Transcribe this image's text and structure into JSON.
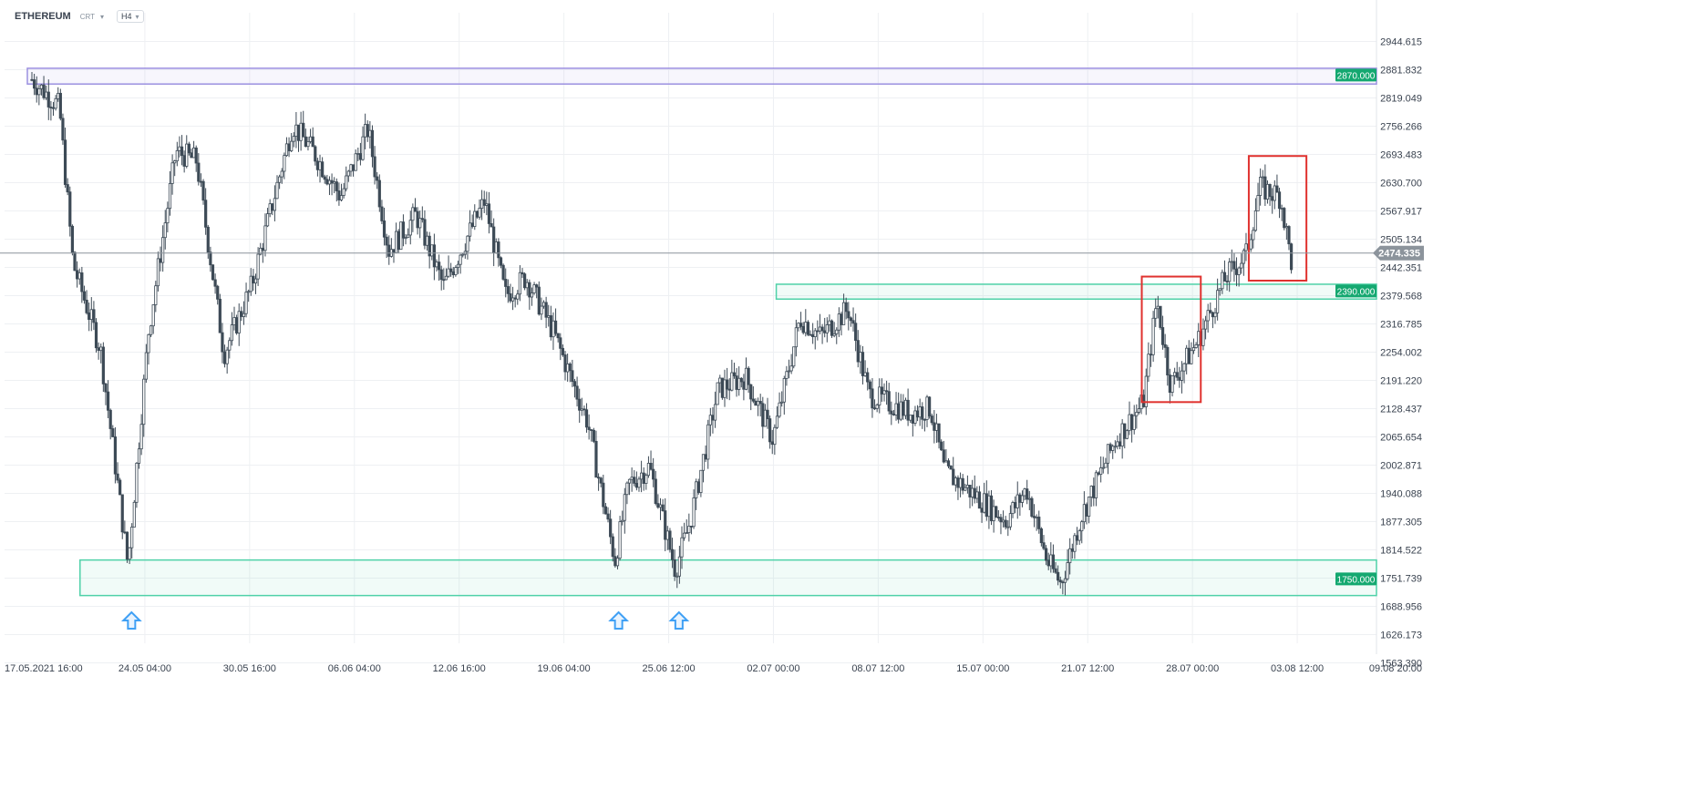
{
  "header": {
    "symbol": "ETHEREUM",
    "chart_type": "CRT",
    "timeframe": "H4"
  },
  "colors": {
    "candle": "#3d4a56",
    "grid": "#eef0f3",
    "resistance_zone": "#9b90e0",
    "support_zone": "#4fd1a8",
    "marker_box": "#e0322f",
    "arrow": "#3fa0f5",
    "price_tag": "#8c949c",
    "level_tag": "#14a870"
  },
  "chart_data": {
    "type": "candlestick",
    "title": "",
    "xlabel": "",
    "ylabel": "",
    "ylim": [
      1563.39,
      3010
    ],
    "y_ticks": [
      "2944.615",
      "2881.832",
      "2819.049",
      "2756.266",
      "2693.483",
      "2630.700",
      "2567.917",
      "2505.134",
      "2442.351",
      "2379.568",
      "2316.785",
      "2254.002",
      "2191.220",
      "2128.437",
      "2065.654",
      "2002.871",
      "1940.088",
      "1877.305",
      "1814.522",
      "1751.739",
      "1688.956",
      "1626.173",
      "1563.390"
    ],
    "x_ticks": [
      "17.05.2021  16:00",
      "24.05  04:00",
      "30.05  16:00",
      "06.06  04:00",
      "12.06  16:00",
      "19.06  04:00",
      "25.06  12:00",
      "02.07  00:00",
      "08.07  12:00",
      "15.07  00:00",
      "21.07  12:00",
      "28.07  00:00",
      "03.08  12:00",
      "09.08  20:00"
    ],
    "current_price": "2474.335",
    "level_labels": [
      "2870.000",
      "2390.000",
      "1750.000"
    ],
    "zones": [
      {
        "name": "resistance",
        "x_start": 0,
        "x_end": 1,
        "y_low": 2850,
        "y_high": 2885,
        "label": "2870.000"
      },
      {
        "name": "mid-resistance",
        "x_start": 0.5625,
        "x_end": 1,
        "y_low": 2372,
        "y_high": 2405,
        "label": "2390.000"
      },
      {
        "name": "support",
        "x_start": 0.055,
        "x_end": 1,
        "y_low": 1713,
        "y_high": 1792,
        "label": "1750.000"
      }
    ],
    "boxes": [
      {
        "t_start": 0.809,
        "t_end": 0.852,
        "y_low": 2143,
        "y_high": 2422
      },
      {
        "t_start": 0.887,
        "t_end": 0.929,
        "y_low": 2413,
        "y_high": 2690
      }
    ],
    "arrows": [
      0.07,
      0.425,
      0.469
    ],
    "trend_anchors": [
      {
        "t": 0.0,
        "p": 2860
      },
      {
        "t": 0.02,
        "p": 2800
      },
      {
        "t": 0.03,
        "p": 2450
      },
      {
        "t": 0.05,
        "p": 2260
      },
      {
        "t": 0.07,
        "p": 1780
      },
      {
        "t": 0.085,
        "p": 2300
      },
      {
        "t": 0.105,
        "p": 2700
      },
      {
        "t": 0.12,
        "p": 2680
      },
      {
        "t": 0.14,
        "p": 2250
      },
      {
        "t": 0.16,
        "p": 2400
      },
      {
        "t": 0.19,
        "p": 2760
      },
      {
        "t": 0.205,
        "p": 2700
      },
      {
        "t": 0.225,
        "p": 2600
      },
      {
        "t": 0.245,
        "p": 2750
      },
      {
        "t": 0.26,
        "p": 2480
      },
      {
        "t": 0.28,
        "p": 2560
      },
      {
        "t": 0.3,
        "p": 2400
      },
      {
        "t": 0.33,
        "p": 2590
      },
      {
        "t": 0.345,
        "p": 2380
      },
      {
        "t": 0.36,
        "p": 2420
      },
      {
        "t": 0.38,
        "p": 2300
      },
      {
        "t": 0.405,
        "p": 2100
      },
      {
        "t": 0.425,
        "p": 1790
      },
      {
        "t": 0.435,
        "p": 1960
      },
      {
        "t": 0.45,
        "p": 2000
      },
      {
        "t": 0.469,
        "p": 1770
      },
      {
        "t": 0.48,
        "p": 1880
      },
      {
        "t": 0.5,
        "p": 2170
      },
      {
        "t": 0.52,
        "p": 2200
      },
      {
        "t": 0.54,
        "p": 2060
      },
      {
        "t": 0.56,
        "p": 2330
      },
      {
        "t": 0.575,
        "p": 2290
      },
      {
        "t": 0.595,
        "p": 2350
      },
      {
        "t": 0.61,
        "p": 2160
      },
      {
        "t": 0.64,
        "p": 2120
      },
      {
        "t": 0.655,
        "p": 2130
      },
      {
        "t": 0.665,
        "p": 1990
      },
      {
        "t": 0.69,
        "p": 1930
      },
      {
        "t": 0.71,
        "p": 1880
      },
      {
        "t": 0.725,
        "p": 1950
      },
      {
        "t": 0.74,
        "p": 1790
      },
      {
        "t": 0.75,
        "p": 1740
      },
      {
        "t": 0.765,
        "p": 1890
      },
      {
        "t": 0.79,
        "p": 2060
      },
      {
        "t": 0.81,
        "p": 2140
      },
      {
        "t": 0.82,
        "p": 2370
      },
      {
        "t": 0.83,
        "p": 2180
      },
      {
        "t": 0.85,
        "p": 2280
      },
      {
        "t": 0.87,
        "p": 2420
      },
      {
        "t": 0.885,
        "p": 2470
      },
      {
        "t": 0.895,
        "p": 2620
      },
      {
        "t": 0.91,
        "p": 2600
      },
      {
        "t": 0.918,
        "p": 2455
      }
    ]
  }
}
